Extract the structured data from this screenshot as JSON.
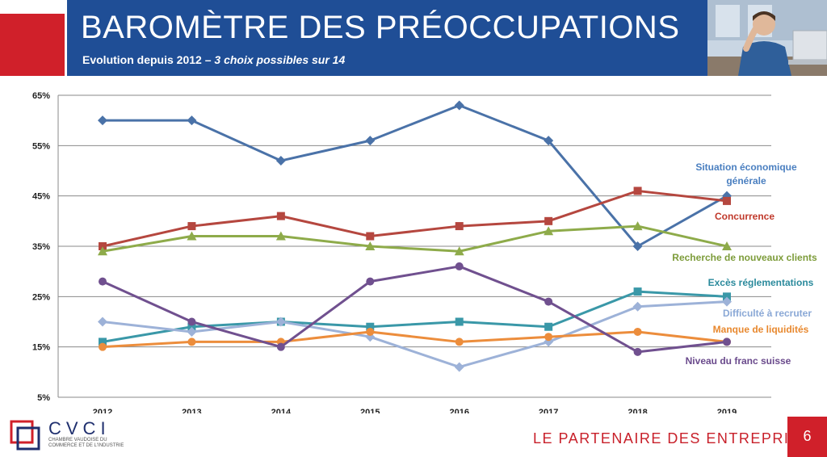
{
  "header": {
    "title": "BAROMÈTRE DES PRÉOCCUPATIONS",
    "subtitle_lead": "Evolution depuis 2012 – ",
    "subtitle_italic": "3 choix possibles sur 14"
  },
  "footer": {
    "slogan": "LE PARTENAIRE DES ENTREPRISES",
    "page_number": "6",
    "logo_name": "CVCI",
    "logo_sub": "Chambre vaudoise du commerce et de l'industrie"
  },
  "colors": {
    "brand_blue": "#1f4e96",
    "brand_red": "#d0202a"
  },
  "chart_data": {
    "type": "line",
    "title": "",
    "xlabel": "",
    "ylabel": "",
    "ylim": [
      5,
      65
    ],
    "yticks": [
      {
        "value": 5,
        "label": "5%"
      },
      {
        "value": 15,
        "label": "15%"
      },
      {
        "value": 25,
        "label": "25%"
      },
      {
        "value": 35,
        "label": "35%"
      },
      {
        "value": 45,
        "label": "45%"
      },
      {
        "value": 55,
        "label": "55%"
      },
      {
        "value": 65,
        "label": "65%"
      }
    ],
    "categories": [
      "2012",
      "2013",
      "2014",
      "2015",
      "2016",
      "2017",
      "2018",
      "2019"
    ],
    "grid": true,
    "legend": "right",
    "series": [
      {
        "name": "Situation économique générale",
        "label_lines": [
          "Situation économique",
          "générale"
        ],
        "color": "#4a72a8",
        "label_color": "#4a7fc0",
        "marker": "diamond",
        "values": [
          60,
          60,
          52,
          56,
          63,
          56,
          35,
          45
        ]
      },
      {
        "name": "Concurrence",
        "label_lines": [
          "Concurrence"
        ],
        "color": "#b5473f",
        "label_color": "#c0392b",
        "marker": "square",
        "values": [
          35,
          39,
          41,
          37,
          39,
          40,
          46,
          44
        ]
      },
      {
        "name": "Recherche de nouveaux clients",
        "label_lines": [
          "Recherche de nouveaux clients"
        ],
        "color": "#8eab4a",
        "label_color": "#7d9c3a",
        "marker": "triangle",
        "values": [
          34,
          37,
          37,
          35,
          34,
          38,
          39,
          35
        ]
      },
      {
        "name": "Excès réglementations",
        "label_lines": [
          "Excès réglementations"
        ],
        "color": "#3a98a8",
        "label_color": "#2b8a9c",
        "marker": "square",
        "values": [
          16,
          19,
          20,
          19,
          20,
          19,
          26,
          25
        ]
      },
      {
        "name": "Difficulté à recruter",
        "label_lines": [
          "Difficulté à recruter"
        ],
        "color": "#9db2d8",
        "label_color": "#8aa8d6",
        "marker": "diamond",
        "values": [
          20,
          18,
          20,
          17,
          11,
          16,
          23,
          24
        ]
      },
      {
        "name": "Manque de liquidités",
        "label_lines": [
          "Manque de liquidités"
        ],
        "color": "#ec8d3c",
        "label_color": "#e8882e",
        "marker": "circle",
        "values": [
          15,
          16,
          16,
          18,
          16,
          17,
          18,
          16
        ]
      },
      {
        "name": "Niveau du franc suisse",
        "label_lines": [
          "Niveau du franc suisse"
        ],
        "color": "#70508f",
        "label_color": "#6a4a8c",
        "marker": "circle",
        "values": [
          28,
          20,
          15,
          28,
          31,
          24,
          14,
          16
        ]
      }
    ]
  }
}
